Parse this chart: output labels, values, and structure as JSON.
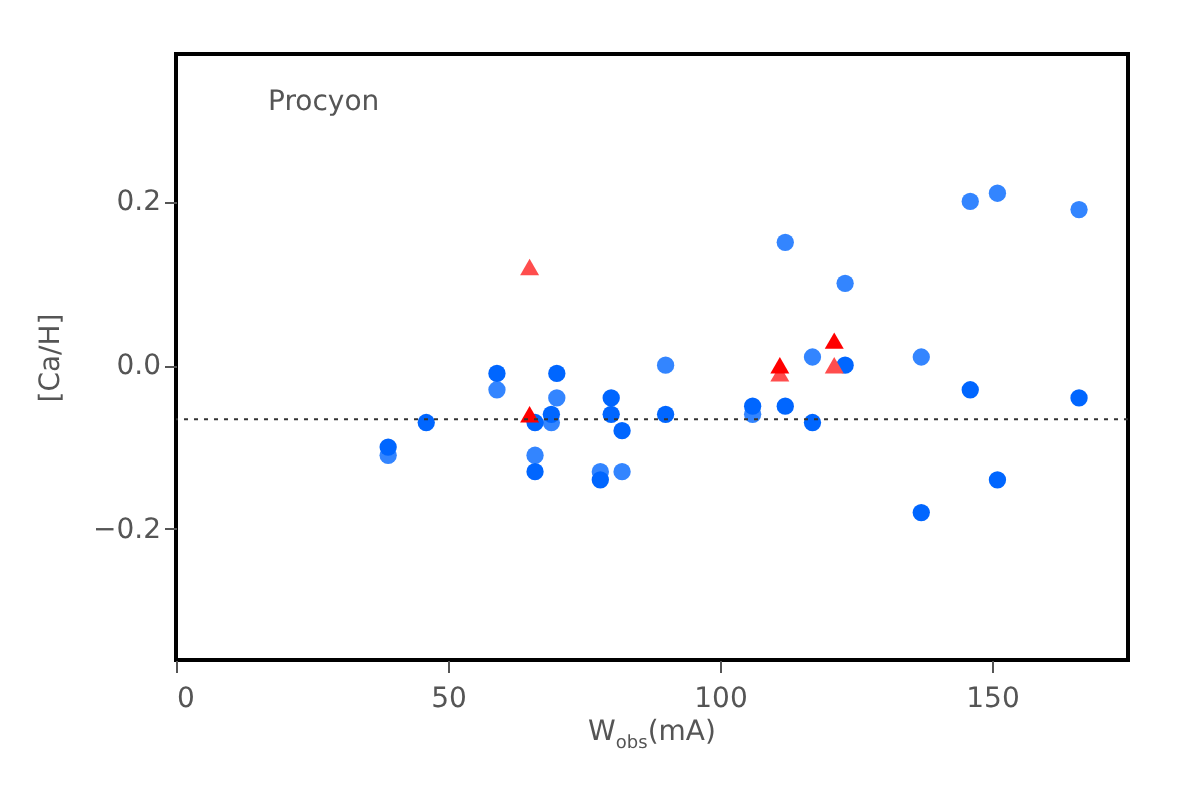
{
  "chart_data": {
    "type": "scatter",
    "xlabel": "W$_{obs}$(mA)",
    "ylabel": "[Ca/H]",
    "annotations": [
      "Procyon"
    ],
    "xlim": [
      0,
      175
    ],
    "xticks": [
      0,
      50,
      100,
      150
    ],
    "ylim": [
      -0.36,
      0.38
    ],
    "yticks": [
      {
        "value": -0.2,
        "label": "−0.2"
      },
      {
        "value": 0,
        "label": "0.0"
      },
      {
        "value": 0.2,
        "label": "0.2"
      }
    ],
    "grid": false,
    "ref_lines": [
      {
        "axis": "y",
        "value": -0.066,
        "color": "#333333",
        "line_style": "dotted"
      }
    ],
    "series": [
      {
        "color": "#3385ff",
        "marker": "circle",
        "x": [
          39,
          59,
          66,
          69,
          70,
          78,
          80,
          82,
          90,
          106,
          112,
          117,
          123,
          137,
          146,
          151,
          166
        ],
        "values": [
          -0.11,
          -0.03,
          -0.11,
          -0.07,
          -0.04,
          -0.13,
          null,
          -0.13,
          0.0,
          -0.06,
          0.15,
          0.01,
          0.1,
          0.01,
          0.2,
          0.21,
          0.19
        ]
      },
      {
        "color": "#0066ff",
        "marker": "circle",
        "x": [
          39,
          46,
          59,
          66,
          66,
          69,
          70,
          78,
          80,
          80,
          82,
          90,
          106,
          112,
          117,
          123,
          137,
          146,
          151,
          166
        ],
        "values": [
          -0.1,
          -0.07,
          -0.01,
          -0.07,
          -0.13,
          -0.06,
          -0.01,
          -0.14,
          -0.04,
          -0.06,
          -0.08,
          -0.06,
          -0.05,
          -0.05,
          -0.07,
          0.0,
          -0.18,
          -0.03,
          -0.14,
          -0.04
        ]
      },
      {
        "color": "#ff4d4d",
        "marker": "triangle",
        "x": [
          65,
          111,
          121
        ],
        "values": [
          0.12,
          -0.01,
          0.0
        ]
      },
      {
        "color": "#ff0000",
        "marker": "triangle",
        "x": [
          65,
          111,
          121
        ],
        "values": [
          -0.06,
          0.0,
          0.03
        ]
      }
    ]
  }
}
